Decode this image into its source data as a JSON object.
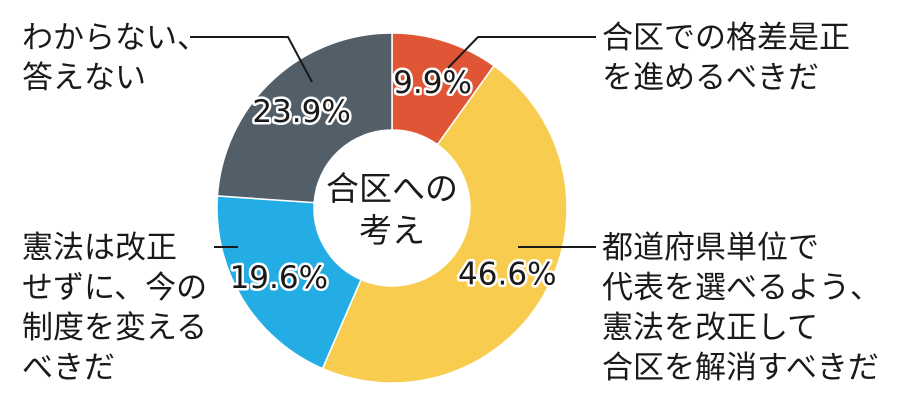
{
  "chart_data": {
    "type": "pie",
    "center_label": [
      "合区への",
      "考え"
    ],
    "slices": [
      {
        "value": 9.9,
        "label_text": "9.9%",
        "lines": [
          "合区での格差是正",
          "を進めるべきだ"
        ],
        "color": "#e05535"
      },
      {
        "value": 46.6,
        "label_text": "46.6%",
        "lines": [
          "都道府県単位で",
          "代表を選べるよう、",
          "憲法を改正して",
          "合区を解消すべきだ"
        ],
        "color": "#f8cd4f"
      },
      {
        "value": 19.6,
        "label_text": "19.6%",
        "lines": [
          "憲法は改正",
          "せずに、今の",
          "制度を変える",
          "べきだ"
        ],
        "color": "#23ade4"
      },
      {
        "value": 23.9,
        "label_text": "23.9%",
        "lines": [
          "わからない、",
          "答えない"
        ],
        "color": "#525e68"
      }
    ]
  }
}
